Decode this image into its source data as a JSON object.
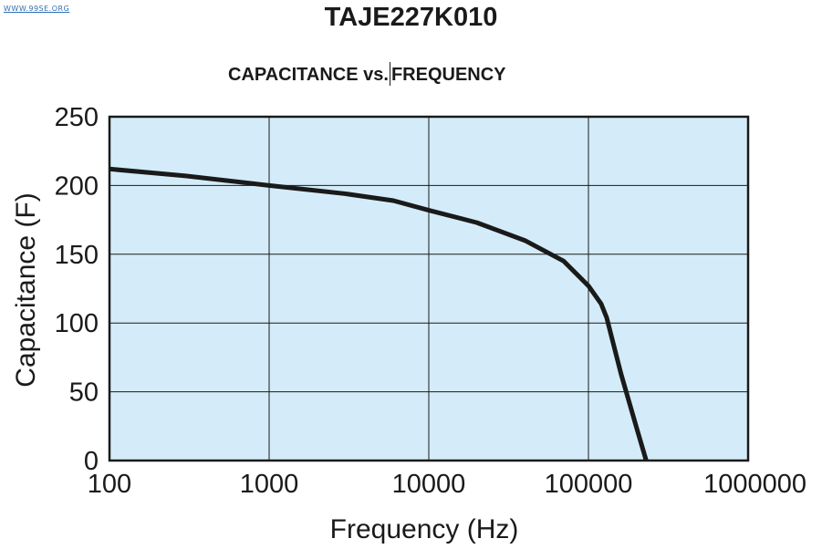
{
  "watermark": "WWW.99SE.ORG",
  "colors": {
    "plot_background": "#d4ecf9",
    "grid": "#1a1a1a",
    "curve": "#1a1a1a",
    "text": "#1a1a1a",
    "watermark": "#2f6fb5"
  },
  "chart_data": {
    "type": "line",
    "title": "TAJE227K010",
    "subtitle_part1": "CAPACITANCE vs.",
    "subtitle_part2": "FREQUENCY",
    "xlabel": "Frequency (Hz)",
    "ylabel": "Capacitance (F)",
    "x_scale": "log",
    "xlim": [
      100,
      1000000
    ],
    "ylim": [
      0,
      250
    ],
    "x_ticks": [
      100,
      1000,
      10000,
      100000,
      1000000
    ],
    "x_tick_labels": [
      "100",
      "1000",
      "10000",
      "100000",
      "1000000"
    ],
    "y_ticks": [
      0,
      50,
      100,
      150,
      200,
      250
    ],
    "y_tick_labels": [
      "0",
      "50",
      "100",
      "150",
      "200",
      "250"
    ],
    "grid": true,
    "legend": "none",
    "series": [
      {
        "x": [
          100,
          300,
          1000,
          3000,
          6000,
          10000,
          20000,
          40000,
          70000,
          100000,
          120000,
          130000,
          160000,
          200000,
          230000
        ],
        "y": [
          212,
          207,
          200,
          194,
          189,
          182,
          173,
          160,
          145,
          127,
          114,
          104,
          63,
          24,
          0
        ]
      }
    ]
  }
}
